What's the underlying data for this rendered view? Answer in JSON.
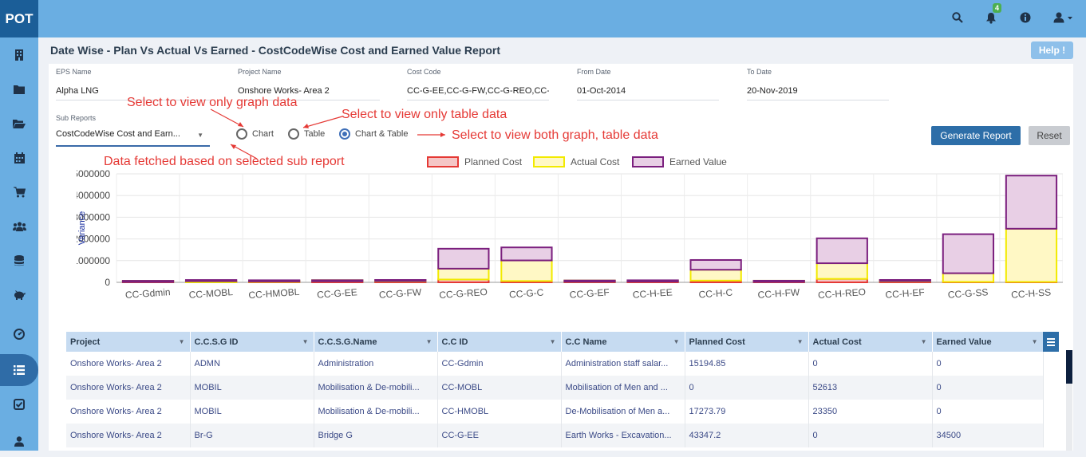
{
  "app": {
    "logo": "POT",
    "notification_count": "4"
  },
  "topbar": {
    "icons": [
      "search-icon",
      "bell-icon",
      "info-icon",
      "user-icon"
    ]
  },
  "sidebar": {
    "icons": [
      "building-icon",
      "folder-icon",
      "folder-open-icon",
      "calendar-icon",
      "cart-icon",
      "users-icon",
      "database-icon",
      "piggy-bank-icon",
      "dashboard-icon",
      "list-icon",
      "check-square-icon",
      "user-icon"
    ],
    "active_index": 9
  },
  "page": {
    "title": "Date Wise - Plan Vs Actual Vs Earned - CostCodeWise Cost and Earned Value Report",
    "help_label": "Help !"
  },
  "filters": {
    "eps": {
      "label": "EPS Name",
      "value": "Alpha LNG"
    },
    "project": {
      "label": "Project Name",
      "value": "Onshore  Works- Area 2"
    },
    "costcode": {
      "label": "Cost Code",
      "value": "CC-G-EE,CC-G-FW,CC-G-REO,CC-G-C,"
    },
    "from": {
      "label": "From Date",
      "value": "01-Oct-2014"
    },
    "to": {
      "label": "To Date",
      "value": "20-Nov-2019"
    },
    "subreport": {
      "label": "Sub Reports",
      "value": "CostCodeWise Cost and Earn..."
    }
  },
  "view_options": {
    "chart": "Chart",
    "table": "Table",
    "both": "Chart & Table",
    "selected": "both"
  },
  "buttons": {
    "generate": "Generate Report",
    "reset": "Reset"
  },
  "annotations": {
    "graph": "Select to view only graph data",
    "table": "Select to view only table data",
    "both": "Select to view both graph, table data",
    "subreport": "Data fetched based on selected sub report"
  },
  "colors": {
    "planned_fill": "#f5c6c6",
    "planned_stroke": "#e53935",
    "actual_fill": "#fff8c5",
    "actual_stroke": "#f2ea00",
    "earned_fill": "#e8cfe5",
    "earned_stroke": "#7b1f7e",
    "annotation": "#e53935"
  },
  "chart_data": {
    "type": "bar",
    "stacked": true,
    "ylabel": "Variance",
    "ylim": [
      0,
      5000000
    ],
    "yticks": [
      "5000000",
      "4000000",
      "3000000",
      "2000000",
      "1000000",
      "0"
    ],
    "grid": true,
    "legend": "top-center",
    "categories": [
      "CC-Gdmin",
      "CC-MOBL",
      "CC-HMOBL",
      "CC-G-EE",
      "CC-G-FW",
      "CC-G-REO",
      "CC-G-C",
      "CC-G-EF",
      "CC-H-EE",
      "CC-H-C",
      "CC-H-FW",
      "CC-H-REO",
      "CC-H-EF",
      "CC-G-SS",
      "CC-H-SS"
    ],
    "series": [
      {
        "name": "Planned Cost",
        "values": [
          15194.85,
          0,
          17273.79,
          43347.2,
          40000,
          130000,
          60000,
          30000,
          35000,
          80000,
          20000,
          160000,
          40000,
          20000,
          20000
        ]
      },
      {
        "name": "Actual Cost",
        "values": [
          0,
          52613,
          23350,
          0,
          15000,
          500000,
          950000,
          0,
          0,
          500000,
          0,
          720000,
          15000,
          400000,
          2450000
        ]
      },
      {
        "name": "Earned Value",
        "values": [
          0,
          0,
          0,
          34500,
          20000,
          920000,
          600000,
          50000,
          60000,
          450000,
          0,
          1150000,
          30000,
          1800000,
          2450000
        ]
      }
    ]
  },
  "table": {
    "columns": [
      "Project",
      "C.C.S.G ID",
      "C.C.S.G.Name",
      "C.C ID",
      "C.C Name",
      "Planned Cost",
      "Actual Cost",
      "Earned Value"
    ],
    "rows": [
      [
        "Onshore Works- Area 2",
        "ADMN",
        "Administration",
        "CC-Gdmin",
        "Administration staff salar...",
        "15194.85",
        "0",
        "0"
      ],
      [
        "Onshore Works- Area 2",
        "MOBIL",
        "Mobilisation & De-mobili...",
        "CC-MOBL",
        "Mobilisation of Men and ...",
        "0",
        "52613",
        "0"
      ],
      [
        "Onshore Works- Area 2",
        "MOBIL",
        "Mobilisation & De-mobili...",
        "CC-HMOBL",
        "De-Mobilisation of Men a...",
        "17273.79",
        "23350",
        "0"
      ],
      [
        "Onshore Works- Area 2",
        "Br-G",
        "Bridge G",
        "CC-G-EE",
        "Earth Works - Excavation...",
        "43347.2",
        "0",
        "34500"
      ]
    ]
  }
}
